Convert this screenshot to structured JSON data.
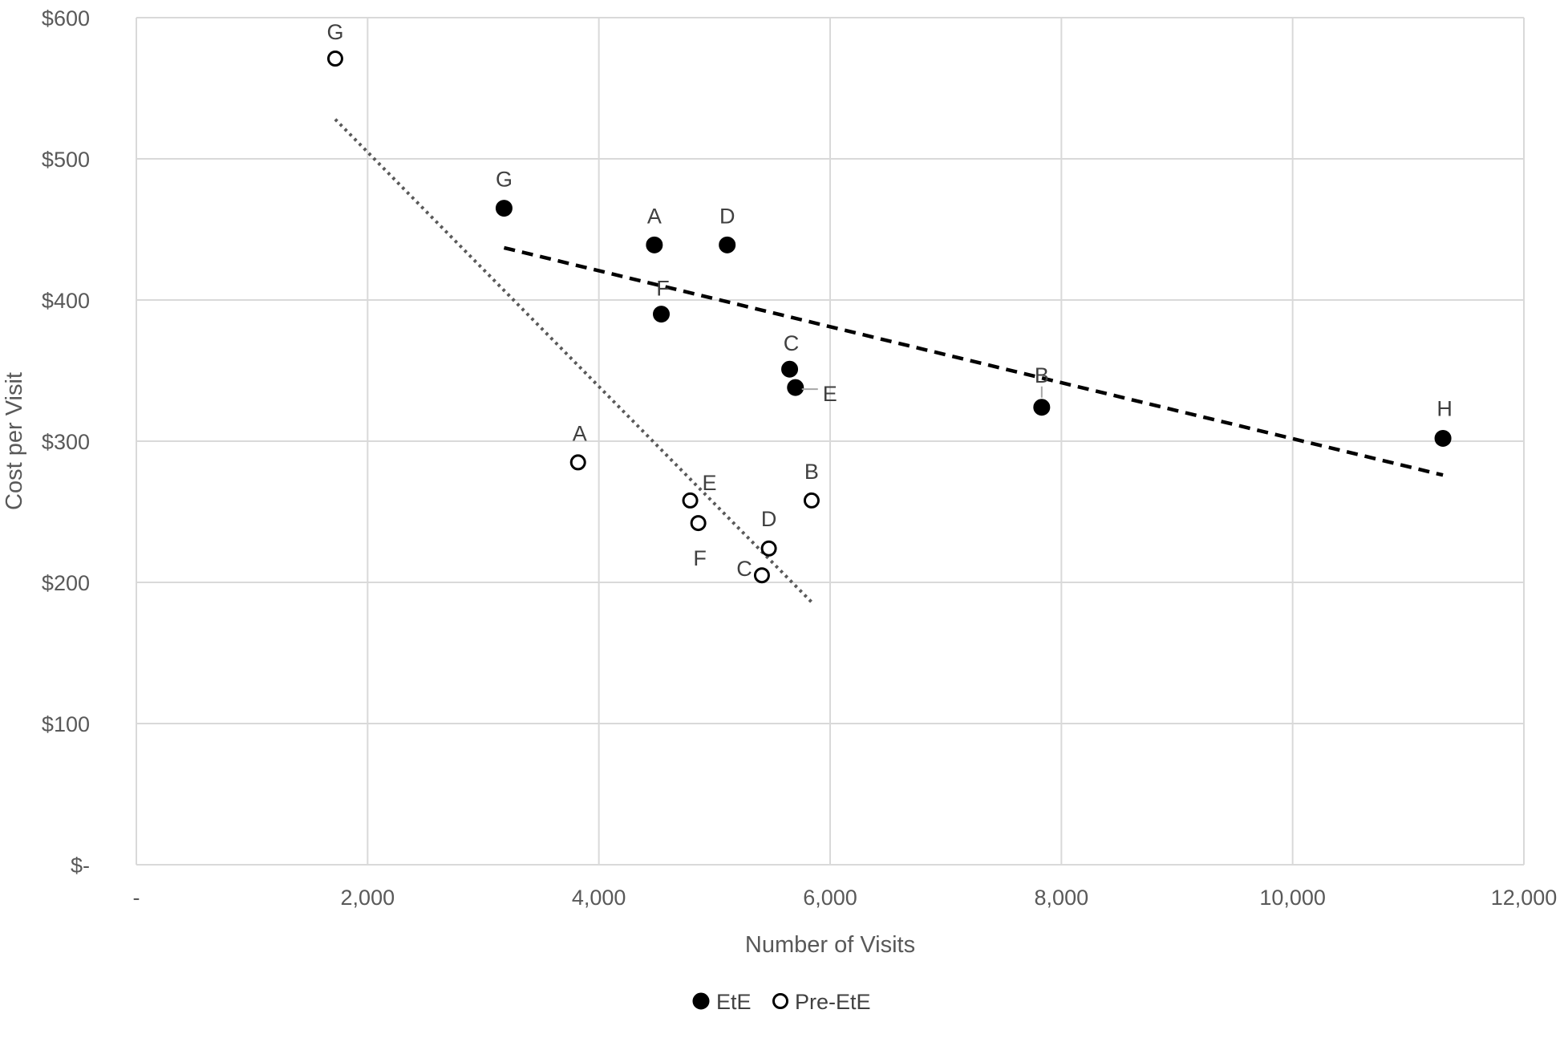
{
  "chart_data": {
    "type": "scatter",
    "title": "",
    "xlabel": "Number of Visits",
    "ylabel": "Cost per Visit",
    "xlim": [
      0,
      12000
    ],
    "ylim": [
      0,
      600
    ],
    "x_ticks": [
      0,
      2000,
      4000,
      6000,
      8000,
      10000,
      12000
    ],
    "x_tick_labels": [
      "-",
      "2,000",
      "4,000",
      "6,000",
      "8,000",
      "10,000",
      "12,000"
    ],
    "y_ticks": [
      0,
      100,
      200,
      300,
      400,
      500,
      600
    ],
    "y_tick_labels": [
      "$-",
      "$100",
      "$200",
      "$300",
      "$400",
      "$500",
      "$600"
    ],
    "grid": true,
    "legend_position": "bottom-center",
    "series": [
      {
        "name": "EtE",
        "marker": "filled-circle",
        "color": "#000000",
        "points": [
          {
            "label": "G",
            "x": 3180,
            "y": 465
          },
          {
            "label": "A",
            "x": 4480,
            "y": 439
          },
          {
            "label": "D",
            "x": 5110,
            "y": 439
          },
          {
            "label": "F",
            "x": 4540,
            "y": 390
          },
          {
            "label": "C",
            "x": 5650,
            "y": 351
          },
          {
            "label": "E",
            "x": 5700,
            "y": 338
          },
          {
            "label": "B",
            "x": 7830,
            "y": 324
          },
          {
            "label": "H",
            "x": 11300,
            "y": 302
          }
        ],
        "trendline": {
          "style": "dashed",
          "from": {
            "x": 3180,
            "y": 437
          },
          "to": {
            "x": 11300,
            "y": 276
          }
        }
      },
      {
        "name": "Pre-EtE",
        "marker": "open-circle",
        "color": "#000000",
        "points": [
          {
            "label": "G",
            "x": 1720,
            "y": 571
          },
          {
            "label": "A",
            "x": 3820,
            "y": 285
          },
          {
            "label": "E",
            "x": 4790,
            "y": 258
          },
          {
            "label": "F",
            "x": 4860,
            "y": 242
          },
          {
            "label": "B",
            "x": 5840,
            "y": 258
          },
          {
            "label": "D",
            "x": 5470,
            "y": 224
          },
          {
            "label": "C",
            "x": 5410,
            "y": 205
          }
        ],
        "trendline": {
          "style": "dotted",
          "from": {
            "x": 1720,
            "y": 528
          },
          "to": {
            "x": 5840,
            "y": 186
          }
        }
      }
    ]
  }
}
